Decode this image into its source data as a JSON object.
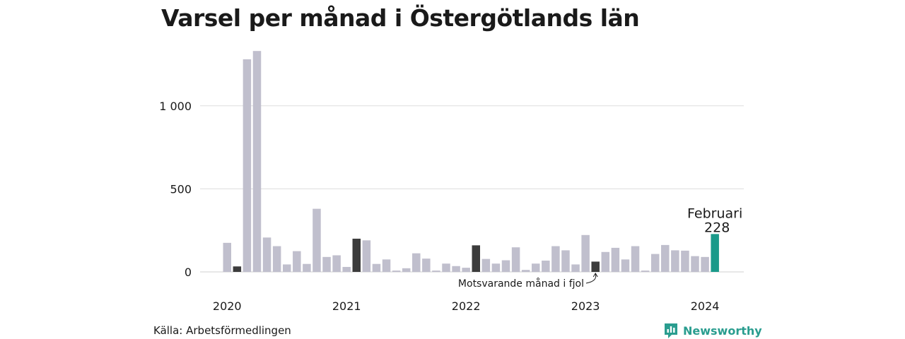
{
  "title": "Varsel per månad i Östergötlands län",
  "source": "Källa: Arbetsförmedlingen",
  "brand": {
    "name": "Newsworthy",
    "icon": "newsworthy-logo-icon",
    "color": "#2a9d8f"
  },
  "colors": {
    "bar": "#c0bfcd",
    "comparison": "#3c3c3c",
    "highlight": "#1a9a8a",
    "grid": "#dddddd"
  },
  "chart_data": {
    "type": "bar",
    "title": "Varsel per månad i Östergötlands län",
    "start": "2020-01",
    "categories": [
      "2020-01",
      "2020-02",
      "2020-03",
      "2020-04",
      "2020-05",
      "2020-06",
      "2020-07",
      "2020-08",
      "2020-09",
      "2020-10",
      "2020-11",
      "2020-12",
      "2021-01",
      "2021-02",
      "2021-03",
      "2021-04",
      "2021-05",
      "2021-06",
      "2021-07",
      "2021-08",
      "2021-09",
      "2021-10",
      "2021-11",
      "2021-12",
      "2022-01",
      "2022-02",
      "2022-03",
      "2022-04",
      "2022-05",
      "2022-06",
      "2022-07",
      "2022-08",
      "2022-09",
      "2022-10",
      "2022-11",
      "2022-12",
      "2023-01",
      "2023-02",
      "2023-03",
      "2023-04",
      "2023-05",
      "2023-06",
      "2023-07",
      "2023-08",
      "2023-09",
      "2023-10",
      "2023-11",
      "2023-12",
      "2024-01",
      "2024-02"
    ],
    "values": [
      175,
      33,
      1280,
      1330,
      207,
      155,
      45,
      125,
      48,
      380,
      90,
      100,
      30,
      200,
      190,
      48,
      75,
      8,
      22,
      112,
      80,
      8,
      50,
      35,
      25,
      160,
      78,
      50,
      70,
      148,
      12,
      50,
      68,
      155,
      130,
      45,
      222,
      62,
      120,
      145,
      75,
      155,
      8,
      108,
      162,
      130,
      128,
      95,
      90,
      228
    ],
    "comparison_months": [
      "2020-02",
      "2021-02",
      "2022-02",
      "2023-02"
    ],
    "highlight_month": "2024-02",
    "x_tick_labels": [
      "2020",
      "2021",
      "2022",
      "2023",
      "2024"
    ],
    "y_ticks": [
      0,
      500,
      1000
    ],
    "y_tick_labels": [
      "0",
      "500",
      "1 000"
    ],
    "ylim": [
      0,
      1400
    ],
    "grid": true,
    "annotations": {
      "comparison": "Motsvarande månad i fjol",
      "highlight_month_label": "Februari",
      "highlight_value_label": "228"
    }
  }
}
